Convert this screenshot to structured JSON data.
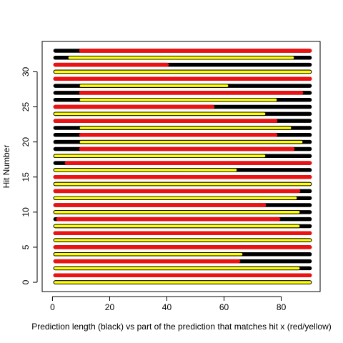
{
  "chart_data": {
    "type": "bar",
    "title": "",
    "xlabel": "Prediction length (black) vs part of the prediction that matches hit x (red/yellow)",
    "ylabel": "Hit Number",
    "xlim": [
      -3.6,
      93.6
    ],
    "ylim": [
      -1.32,
      34.32
    ],
    "xticks": [
      0,
      20,
      40,
      60,
      80
    ],
    "yticks": [
      0,
      5,
      10,
      15,
      20,
      25,
      30
    ],
    "grid": false,
    "legend": "none",
    "colors": {
      "prediction": "#000000",
      "red": "#ee1111",
      "yellow": "#ffff00",
      "yellow_edge": "#000000"
    },
    "series": [
      {
        "name": "prediction length (black)"
      },
      {
        "name": "matching part (red/yellow)"
      }
    ],
    "hits": [
      {
        "hit": 0,
        "pred": [
          1,
          90
        ],
        "match": [
          1,
          90
        ],
        "color": "yellow"
      },
      {
        "hit": 1,
        "pred": [
          1,
          90
        ],
        "match": [
          1,
          90
        ],
        "color": "red"
      },
      {
        "hit": 2,
        "pred": [
          1,
          90
        ],
        "match": [
          1,
          86
        ],
        "color": "yellow"
      },
      {
        "hit": 3,
        "pred": [
          1,
          90
        ],
        "match": [
          1,
          65
        ],
        "color": "red"
      },
      {
        "hit": 4,
        "pred": [
          1,
          90
        ],
        "match": [
          1,
          66
        ],
        "color": "yellow"
      },
      {
        "hit": 5,
        "pred": [
          1,
          90
        ],
        "match": [
          1,
          90
        ],
        "color": "red"
      },
      {
        "hit": 6,
        "pred": [
          1,
          90
        ],
        "match": [
          1,
          90
        ],
        "color": "yellow"
      },
      {
        "hit": 7,
        "pred": [
          1,
          90
        ],
        "match": [
          1,
          90
        ],
        "color": "red"
      },
      {
        "hit": 8,
        "pred": [
          1,
          90
        ],
        "match": [
          1,
          86
        ],
        "color": "yellow"
      },
      {
        "hit": 9,
        "pred": [
          1,
          90
        ],
        "match": [
          2,
          79
        ],
        "color": "red"
      },
      {
        "hit": 10,
        "pred": [
          1,
          90
        ],
        "match": [
          1,
          86
        ],
        "color": "yellow"
      },
      {
        "hit": 11,
        "pred": [
          1,
          90
        ],
        "match": [
          1,
          74
        ],
        "color": "red"
      },
      {
        "hit": 12,
        "pred": [
          1,
          90
        ],
        "match": [
          1,
          85
        ],
        "color": "yellow"
      },
      {
        "hit": 13,
        "pred": [
          1,
          90
        ],
        "match": [
          1,
          86
        ],
        "color": "red"
      },
      {
        "hit": 14,
        "pred": [
          1,
          90
        ],
        "match": [
          1,
          90
        ],
        "color": "yellow"
      },
      {
        "hit": 15,
        "pred": [
          1,
          90
        ],
        "match": [
          1,
          90
        ],
        "color": "red"
      },
      {
        "hit": 16,
        "pred": [
          1,
          90
        ],
        "match": [
          1,
          64
        ],
        "color": "yellow"
      },
      {
        "hit": 17,
        "pred": [
          1,
          90
        ],
        "match": [
          5,
          90
        ],
        "color": "red"
      },
      {
        "hit": 18,
        "pred": [
          1,
          90
        ],
        "match": [
          1,
          74
        ],
        "color": "yellow"
      },
      {
        "hit": 19,
        "pred": [
          1,
          90
        ],
        "match": [
          10,
          84
        ],
        "color": "red"
      },
      {
        "hit": 20,
        "pred": [
          1,
          90
        ],
        "match": [
          10,
          87
        ],
        "color": "yellow"
      },
      {
        "hit": 21,
        "pred": [
          1,
          90
        ],
        "match": [
          10,
          78
        ],
        "color": "red"
      },
      {
        "hit": 22,
        "pred": [
          1,
          90
        ],
        "match": [
          10,
          83
        ],
        "color": "yellow"
      },
      {
        "hit": 23,
        "pred": [
          1,
          90
        ],
        "match": [
          1,
          78
        ],
        "color": "red"
      },
      {
        "hit": 24,
        "pred": [
          1,
          90
        ],
        "match": [
          1,
          74
        ],
        "color": "yellow"
      },
      {
        "hit": 25,
        "pred": [
          1,
          90
        ],
        "match": [
          1,
          56
        ],
        "color": "red"
      },
      {
        "hit": 26,
        "pred": [
          1,
          90
        ],
        "match": [
          10,
          78
        ],
        "color": "yellow"
      },
      {
        "hit": 27,
        "pred": [
          1,
          90
        ],
        "match": [
          10,
          87
        ],
        "color": "red"
      },
      {
        "hit": 28,
        "pred": [
          1,
          90
        ],
        "match": [
          10,
          61
        ],
        "color": "yellow"
      },
      {
        "hit": 29,
        "pred": [
          1,
          90
        ],
        "match": [
          1,
          90
        ],
        "color": "red"
      },
      {
        "hit": 30,
        "pred": [
          1,
          90
        ],
        "match": [
          1,
          90
        ],
        "color": "yellow"
      },
      {
        "hit": 31,
        "pred": [
          1,
          90
        ],
        "match": [
          1,
          40
        ],
        "color": "red"
      },
      {
        "hit": 32,
        "pred": [
          1,
          90
        ],
        "match": [
          6,
          84
        ],
        "color": "yellow"
      },
      {
        "hit": 33,
        "pred": [
          1,
          90
        ],
        "match": [
          10,
          90
        ],
        "color": "red"
      }
    ]
  }
}
